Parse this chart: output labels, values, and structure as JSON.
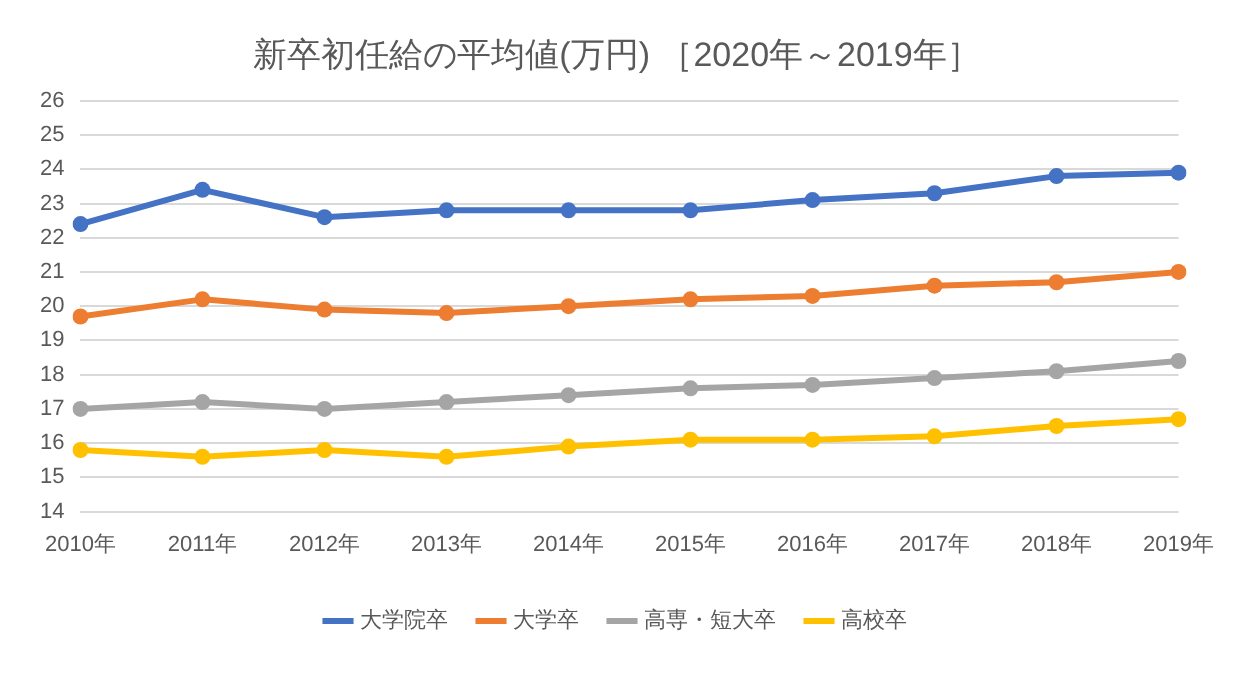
{
  "chart_data": {
    "type": "line",
    "title": "新卒初任給の平均値(万円) ［2020年～2019年］",
    "categories": [
      "2010年",
      "2011年",
      "2012年",
      "2013年",
      "2014年",
      "2015年",
      "2016年",
      "2017年",
      "2018年",
      "2019年"
    ],
    "series": [
      {
        "name": "大学院卒",
        "color": "#4472c4",
        "values": [
          22.4,
          23.4,
          22.6,
          22.8,
          22.8,
          22.8,
          23.1,
          23.3,
          23.8,
          23.9
        ]
      },
      {
        "name": "大学卒",
        "color": "#ed7d31",
        "values": [
          19.7,
          20.2,
          19.9,
          19.8,
          20.0,
          20.2,
          20.3,
          20.6,
          20.7,
          21.0
        ]
      },
      {
        "name": "高専・短大卒",
        "color": "#a5a5a5",
        "values": [
          17.0,
          17.2,
          17.0,
          17.2,
          17.4,
          17.6,
          17.7,
          17.9,
          18.1,
          18.4
        ]
      },
      {
        "name": "高校卒",
        "color": "#ffc000",
        "values": [
          15.8,
          15.6,
          15.8,
          15.6,
          15.9,
          16.1,
          16.1,
          16.2,
          16.5,
          16.7
        ]
      }
    ],
    "ylim": [
      14,
      26
    ],
    "yticks": [
      14,
      15,
      16,
      17,
      18,
      19,
      20,
      21,
      22,
      23,
      24,
      25,
      26
    ],
    "grid": "y",
    "legend": "bottom",
    "marker": "circle",
    "line_style": "solid"
  }
}
